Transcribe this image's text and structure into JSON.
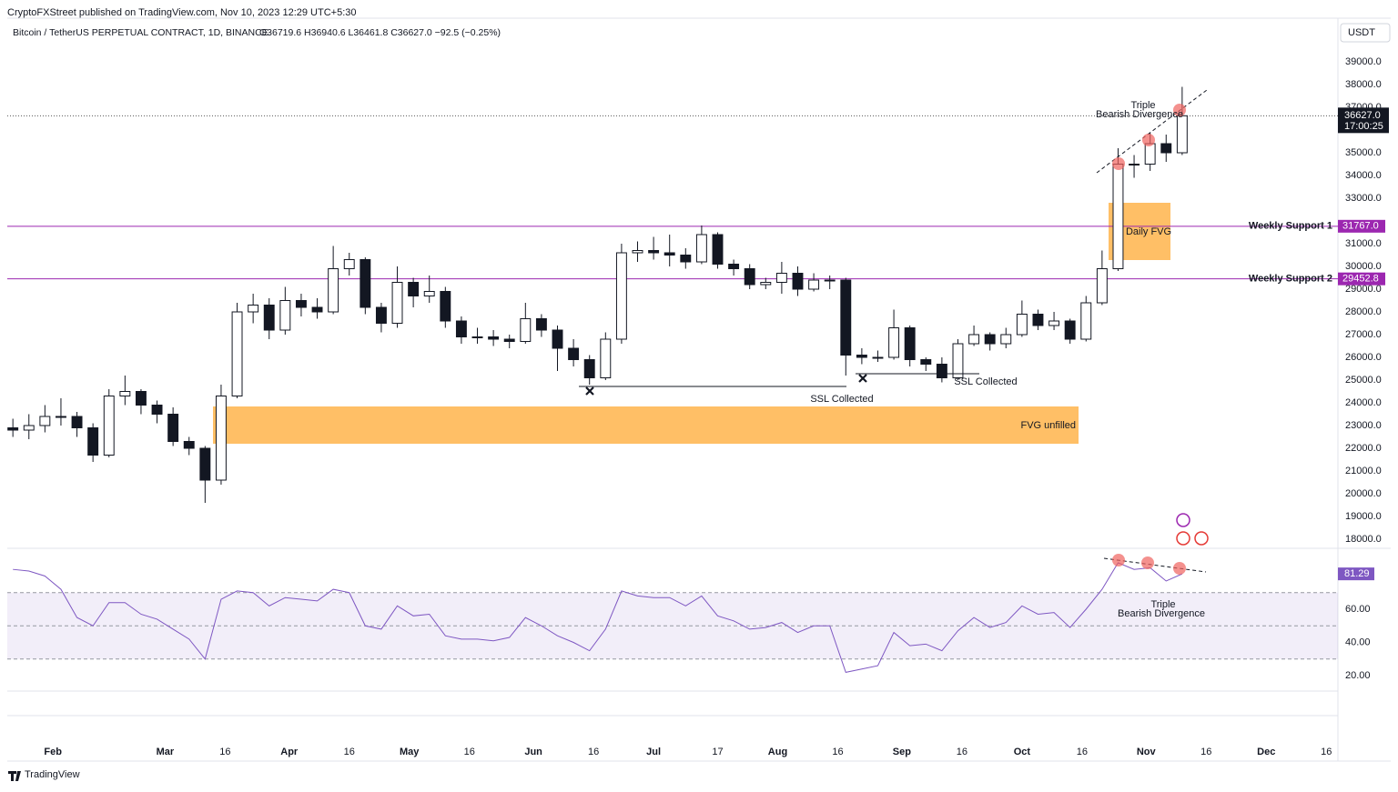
{
  "header": {
    "publisher": "CryptoFXStreet published on TradingView.com, Nov 10, 2023 12:29 UTC+5:30",
    "symbol": "Bitcoin / TetherUS PERPETUAL CONTRACT, 1D, BINANCE",
    "ohlc": "O36719.6  H36940.6  L36461.8  C36627.0  −92.5 (−0.25%)",
    "currency": "USDT"
  },
  "footer": {
    "brand": "TradingView"
  },
  "annotations": {
    "fvg_unfilled": "FVG unfilled",
    "daily_fvg": "Daily FVG",
    "ssl_1": "SSL Collected",
    "ssl_2": "SSL Collected",
    "price_div_1": "Triple",
    "price_div_2": "Bearish Divergence",
    "rsi_div_1": "Triple",
    "rsi_div_2": "Bearish Divergence"
  },
  "chart_data": [
    {
      "type": "candlestick",
      "up_color": "#ffffff",
      "down_color": "#131722",
      "xlim": [
        19.6,
        351.9
      ],
      "ylim": [
        17600,
        39800
      ],
      "x": [
        21,
        25,
        29,
        33,
        37,
        41,
        45,
        49,
        53,
        57,
        61,
        65,
        69,
        73,
        77,
        81,
        85,
        89,
        93,
        97,
        101,
        105,
        109,
        113,
        117,
        121,
        125,
        129,
        133,
        137,
        141,
        145,
        149,
        153,
        157,
        161,
        165,
        169,
        173,
        177,
        181,
        185,
        189,
        193,
        197,
        201,
        205,
        209,
        213,
        217,
        221,
        225,
        229,
        233,
        237,
        241,
        245,
        249,
        253,
        257,
        261,
        265,
        269,
        273,
        277,
        281,
        285,
        289,
        293,
        297,
        301,
        305,
        309,
        313
      ],
      "open": [
        22900,
        22800,
        23000,
        23400,
        23400,
        22900,
        21700,
        24300,
        24500,
        23900,
        23500,
        22300,
        22000,
        20600,
        24300,
        28000,
        28300,
        27200,
        28500,
        28200,
        28000,
        29900,
        30300,
        28200,
        27500,
        29300,
        28700,
        28900,
        27600,
        26900,
        26900,
        26800,
        26700,
        27700,
        27200,
        26400,
        25900,
        25100,
        26800,
        30600,
        30700,
        30600,
        30500,
        30200,
        31400,
        30100,
        29900,
        29200,
        29300,
        29700,
        29000,
        29400,
        29400,
        26100,
        26000,
        26000,
        27300,
        25900,
        25700,
        25100,
        26600,
        27000,
        26600,
        27000,
        27900,
        27400,
        27600,
        26800,
        28400,
        29900,
        34500,
        34500,
        35400,
        35000
      ],
      "high": [
        23300,
        23500,
        23900,
        24200,
        23600,
        23100,
        24600,
        25200,
        24600,
        24100,
        23800,
        22500,
        22100,
        24800,
        28400,
        28800,
        28600,
        29100,
        28800,
        28600,
        30900,
        30600,
        30400,
        28400,
        30000,
        29500,
        29600,
        29100,
        27800,
        27300,
        27200,
        27000,
        28400,
        27900,
        27400,
        26800,
        26100,
        27100,
        31000,
        31100,
        31300,
        31400,
        30800,
        31800,
        31500,
        30300,
        30100,
        29500,
        30200,
        30000,
        29700,
        29600,
        29500,
        26400,
        26300,
        28100,
        27400,
        26000,
        26000,
        26800,
        27400,
        27100,
        27300,
        28500,
        28100,
        28000,
        27700,
        28700,
        30700,
        35200,
        34900,
        35900,
        35800,
        37900
      ],
      "low": [
        22500,
        22400,
        22700,
        23000,
        22500,
        21400,
        21600,
        23900,
        23500,
        23100,
        22100,
        21700,
        19600,
        20400,
        24200,
        27500,
        26800,
        27000,
        27800,
        27700,
        27900,
        29600,
        27900,
        27100,
        27300,
        28200,
        28400,
        27300,
        26600,
        26600,
        26500,
        26400,
        26600,
        26900,
        25400,
        25600,
        24800,
        25000,
        26600,
        30200,
        30300,
        30000,
        29900,
        30100,
        29900,
        29600,
        29000,
        29000,
        28800,
        28700,
        28900,
        29000,
        25200,
        25700,
        25800,
        25900,
        25600,
        25400,
        24900,
        25000,
        26500,
        26300,
        26400,
        26900,
        27200,
        27200,
        26600,
        26700,
        28300,
        29800,
        33900,
        34200,
        34600,
        34900
      ],
      "close": [
        22800,
        23000,
        23400,
        23400,
        22900,
        21700,
        24300,
        24500,
        23900,
        23500,
        22300,
        22000,
        20600,
        24300,
        28000,
        28300,
        27200,
        28500,
        28200,
        28000,
        29900,
        30300,
        28200,
        27500,
        29300,
        28700,
        28900,
        27600,
        26900,
        26900,
        26800,
        26700,
        27700,
        27200,
        26400,
        25900,
        25100,
        26800,
        30600,
        30700,
        30600,
        30500,
        30200,
        31400,
        30100,
        29900,
        29200,
        29300,
        29700,
        29000,
        29400,
        29400,
        26100,
        26000,
        26000,
        27300,
        25900,
        25700,
        25100,
        26600,
        27000,
        26600,
        27000,
        27900,
        27400,
        27600,
        26800,
        28400,
        29900,
        34500,
        34500,
        35400,
        35000,
        36627
      ],
      "yticks": [
        {
          "value": 18000,
          "label": "18000.0"
        },
        {
          "value": 19000,
          "label": "19000.0"
        },
        {
          "value": 20000,
          "label": "20000.0"
        },
        {
          "value": 21000,
          "label": "21000.0"
        },
        {
          "value": 22000,
          "label": "22000.0"
        },
        {
          "value": 23000,
          "label": "23000.0"
        },
        {
          "value": 24000,
          "label": "24000.0"
        },
        {
          "value": 25000,
          "label": "25000.0"
        },
        {
          "value": 26000,
          "label": "26000.0"
        },
        {
          "value": 27000,
          "label": "27000.0"
        },
        {
          "value": 28000,
          "label": "28000.0"
        },
        {
          "value": 29000,
          "label": "29000.0"
        },
        {
          "value": 30000,
          "label": "30000.0"
        },
        {
          "value": 31000,
          "label": "31000.0"
        },
        {
          "value": 33000,
          "label": "33000.0"
        },
        {
          "value": 34000,
          "label": "34000.0"
        },
        {
          "value": 35000,
          "label": "35000.0"
        },
        {
          "value": 37000,
          "label": "37000.0"
        },
        {
          "value": 38000,
          "label": "38000.0"
        },
        {
          "value": 39000,
          "label": "39000.0"
        }
      ],
      "levels": [
        {
          "name": "Weekly Support 1",
          "value": 31767,
          "label": "31767.0",
          "color": "#9c27b0"
        },
        {
          "name": "Weekly Support 2",
          "value": 29452.8,
          "label": "29452.8",
          "color": "#9c27b0"
        }
      ],
      "last_price": {
        "value": 36627,
        "label": "36627.0",
        "countdown": "17:00:25"
      }
    },
    {
      "type": "line",
      "color": "#7e57c2",
      "xlim": [
        19.6,
        351.9
      ],
      "ylim": [
        10.7,
        96.7
      ],
      "levels": [
        70,
        50,
        30
      ],
      "x": [
        21,
        25,
        29,
        33,
        37,
        41,
        45,
        49,
        53,
        57,
        61,
        65,
        69,
        73,
        77,
        81,
        85,
        89,
        93,
        97,
        101,
        105,
        109,
        113,
        117,
        121,
        125,
        129,
        133,
        137,
        141,
        145,
        149,
        153,
        157,
        161,
        165,
        169,
        173,
        177,
        181,
        185,
        189,
        193,
        197,
        201,
        205,
        209,
        213,
        217,
        221,
        225,
        229,
        233,
        237,
        241,
        245,
        249,
        253,
        257,
        261,
        265,
        269,
        273,
        277,
        281,
        285,
        289,
        293,
        297,
        301,
        305,
        309,
        313
      ],
      "values": [
        84,
        83,
        80,
        72,
        55,
        50,
        64,
        64,
        57,
        54,
        48,
        42,
        30,
        66,
        71,
        70,
        62,
        67,
        66,
        65,
        72,
        70,
        50,
        48,
        62,
        56,
        57,
        44,
        42,
        42,
        41,
        43,
        55,
        50,
        44,
        40,
        35,
        48,
        71,
        68,
        67,
        67,
        62,
        68,
        56,
        53,
        48,
        49,
        52,
        46,
        50,
        50,
        22,
        24,
        26,
        46,
        38,
        39,
        35,
        47,
        55,
        49,
        52,
        62,
        57,
        58,
        49,
        60,
        72,
        88,
        84,
        85,
        77,
        81.29
      ],
      "yticks": [
        {
          "value": 20,
          "label": "20.00"
        },
        {
          "value": 40,
          "label": "40.00"
        },
        {
          "value": 60,
          "label": "60.00"
        }
      ],
      "xticks": [
        {
          "value": 31,
          "label": "Feb"
        },
        {
          "value": 59,
          "label": "Mar"
        },
        {
          "value": 74,
          "label": "16"
        },
        {
          "value": 90,
          "label": "Apr"
        },
        {
          "value": 105,
          "label": "16"
        },
        {
          "value": 120,
          "label": "May"
        },
        {
          "value": 135,
          "label": "16"
        },
        {
          "value": 151,
          "label": "Jun"
        },
        {
          "value": 166,
          "label": "16"
        },
        {
          "value": 181,
          "label": "Jul"
        },
        {
          "value": 197,
          "label": "17"
        },
        {
          "value": 212,
          "label": "Aug"
        },
        {
          "value": 227,
          "label": "16"
        },
        {
          "value": 243,
          "label": "Sep"
        },
        {
          "value": 258,
          "label": "16"
        },
        {
          "value": 273,
          "label": "Oct"
        },
        {
          "value": 288,
          "label": "16"
        },
        {
          "value": 304,
          "label": "Nov"
        },
        {
          "value": 319,
          "label": "16"
        },
        {
          "value": 334,
          "label": "Dec"
        },
        {
          "value": 349,
          "label": "16"
        }
      ]
    }
  ]
}
